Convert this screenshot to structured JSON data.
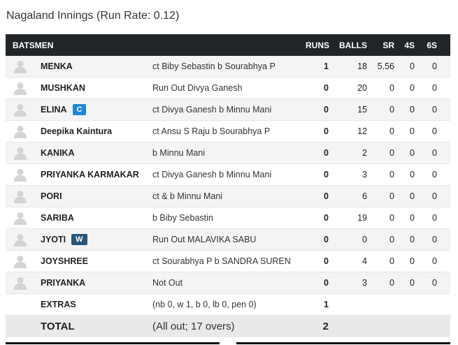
{
  "innings_title": "Nagaland Innings (Run Rate: 0.12)",
  "header": {
    "batsmen": "BATSMEN",
    "runs": "RUNS",
    "balls": "BALLS",
    "sr": "SR",
    "fours": "4S",
    "sixes": "6S"
  },
  "batsmen": [
    {
      "name": "MENKA",
      "badge": "",
      "dismissal": "ct Biby Sebastin b Sourabhya P",
      "runs": "1",
      "balls": "18",
      "sr": "5.56",
      "fours": "0",
      "sixes": "0"
    },
    {
      "name": "MUSHKAN",
      "badge": "",
      "dismissal": "Run Out Divya Ganesh",
      "runs": "0",
      "balls": "20",
      "sr": "0",
      "fours": "0",
      "sixes": "0"
    },
    {
      "name": "ELINA",
      "badge": "C",
      "dismissal": "ct Divya Ganesh b Minnu Mani",
      "runs": "0",
      "balls": "15",
      "sr": "0",
      "fours": "0",
      "sixes": "0"
    },
    {
      "name": "Deepika Kaintura",
      "badge": "",
      "dismissal": "ct Ansu S Raju b Sourabhya P",
      "runs": "0",
      "balls": "12",
      "sr": "0",
      "fours": "0",
      "sixes": "0"
    },
    {
      "name": "KANIKA",
      "badge": "",
      "dismissal": "b Minnu Mani",
      "runs": "0",
      "balls": "2",
      "sr": "0",
      "fours": "0",
      "sixes": "0"
    },
    {
      "name": "PRIYANKA KARMAKAR",
      "badge": "",
      "dismissal": "ct Divya Ganesh b Minnu Mani",
      "runs": "0",
      "balls": "3",
      "sr": "0",
      "fours": "0",
      "sixes": "0"
    },
    {
      "name": "PORI",
      "badge": "",
      "dismissal": "ct & b Minnu Mani",
      "runs": "0",
      "balls": "6",
      "sr": "0",
      "fours": "0",
      "sixes": "0"
    },
    {
      "name": "SARIBA",
      "badge": "",
      "dismissal": "b Biby Sebastin",
      "runs": "0",
      "balls": "19",
      "sr": "0",
      "fours": "0",
      "sixes": "0"
    },
    {
      "name": "JYOTI",
      "badge": "W",
      "dismissal": "Run Out MALAVIKA SABU",
      "runs": "0",
      "balls": "0",
      "sr": "0",
      "fours": "0",
      "sixes": "0"
    },
    {
      "name": "JOYSHREE",
      "badge": "",
      "dismissal": "ct Sourabhya P b SANDRA SUREN",
      "runs": "0",
      "balls": "4",
      "sr": "0",
      "fours": "0",
      "sixes": "0"
    },
    {
      "name": "PRIYANKA",
      "badge": "",
      "dismissal": "Not Out",
      "runs": "0",
      "balls": "3",
      "sr": "0",
      "fours": "0",
      "sixes": "0"
    }
  ],
  "extras": {
    "label": "EXTRAS",
    "detail": "(nb 0, w 1, b 0, lb 0, pen 0)",
    "value": "1"
  },
  "total": {
    "label": "TOTAL",
    "detail": "(All out; 17 overs)",
    "value": "2"
  },
  "colors": {
    "header_bg": "#212529",
    "captain_badge": "#1e88d6",
    "keeper_badge": "#2a5678",
    "stripe": "#f4f4f4"
  },
  "icons": {
    "player_avatar": "person-silhouette-icon"
  }
}
